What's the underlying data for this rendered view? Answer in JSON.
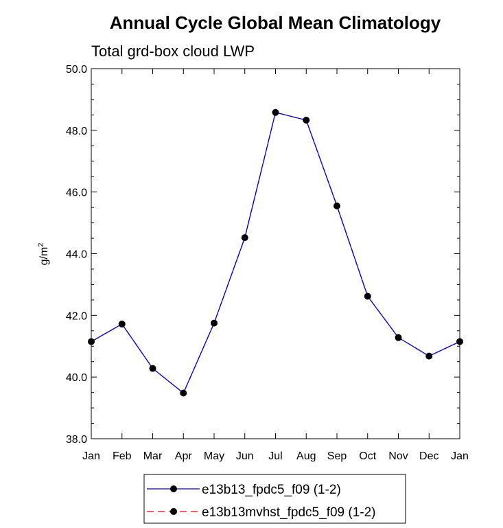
{
  "chart_data": {
    "type": "line",
    "title": "Annual Cycle Global Mean Climatology",
    "subtitle": "Total grd-box cloud LWP",
    "ylabel_base": "g/m",
    "ylabel_sup": "2",
    "xlabel": "",
    "ylim": [
      38.0,
      50.0
    ],
    "y_ticks": [
      "38.0",
      "40.0",
      "42.0",
      "44.0",
      "46.0",
      "48.0",
      "50.0"
    ],
    "categories": [
      "Jan",
      "Feb",
      "Mar",
      "Apr",
      "May",
      "Jun",
      "Jul",
      "Aug",
      "Sep",
      "Oct",
      "Nov",
      "Dec",
      "Jan"
    ],
    "series": [
      {
        "name": "e13b13_fpdc5_f09 (1-2)",
        "color": "#0000cc",
        "line_style": "solid",
        "marker": "filled-circle",
        "values": [
          41.15,
          41.72,
          40.28,
          39.48,
          41.75,
          44.52,
          48.58,
          48.33,
          45.55,
          42.62,
          41.28,
          40.68,
          41.15
        ]
      },
      {
        "name": "e13b13mvhst_fpdc5_f09 (1-2)",
        "color": "#ff0000",
        "line_style": "dashed",
        "marker": "filled-circle",
        "values": [
          41.15,
          41.72,
          40.28,
          39.48,
          41.75,
          44.52,
          48.58,
          48.33,
          45.55,
          42.62,
          41.28,
          40.68,
          41.15
        ]
      }
    ],
    "grid": false,
    "legend_position": "bottom-center"
  }
}
